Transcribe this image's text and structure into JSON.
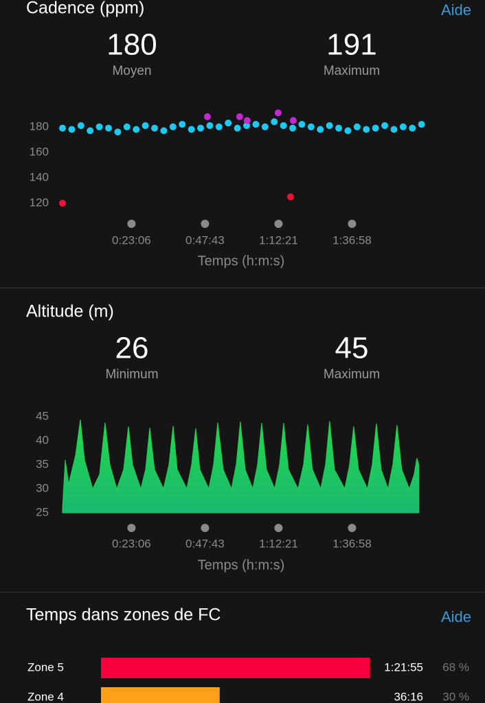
{
  "chart_data": [
    {
      "type": "scatter",
      "title": "Cadence (ppm)",
      "help": "Aide",
      "stats": [
        {
          "value": 180,
          "label": "Moyen"
        },
        {
          "value": 191,
          "label": "Maximum"
        }
      ],
      "xlabel": "Temps (h:m:s)",
      "xlim": [
        0,
        7220
      ],
      "xticks": [
        {
          "value": 1386,
          "label": "0:23:06"
        },
        {
          "value": 2863,
          "label": "0:47:43"
        },
        {
          "value": 4341,
          "label": "1:12:21"
        },
        {
          "value": 5818,
          "label": "1:36:58"
        }
      ],
      "ylim": [
        113,
        195
      ],
      "yticks": [
        120,
        140,
        160,
        180
      ],
      "series": [
        {
          "color": "#1ec8f0",
          "x": [
            0,
            185,
            370,
            555,
            740,
            925,
            1110,
            1295,
            1480,
            1665,
            1850,
            2035,
            2220,
            2405,
            2590,
            2775,
            2960,
            3145,
            3330,
            3515,
            3700,
            3885,
            4070,
            4255,
            4440,
            4625,
            4810,
            4995,
            5180,
            5365,
            5550,
            5735,
            5920,
            6105,
            6290,
            6475,
            6660,
            6845,
            7030,
            7215
          ],
          "values": [
            179,
            178,
            181,
            177,
            180,
            179,
            176,
            180,
            178,
            181,
            179,
            177,
            180,
            182,
            178,
            179,
            181,
            180,
            183,
            179,
            181,
            182,
            180,
            184,
            181,
            179,
            182,
            180,
            178,
            181,
            179,
            177,
            180,
            178,
            179,
            181,
            178,
            180,
            179,
            182
          ]
        },
        {
          "color": "#c02ad0",
          "x": [
            2912,
            3560,
            3712,
            4333,
            4637
          ],
          "values": [
            188,
            188,
            185,
            191,
            185
          ]
        },
        {
          "color": "#f0103a",
          "x": [
            0,
            4582
          ],
          "values": [
            120,
            125
          ]
        }
      ]
    },
    {
      "type": "area",
      "title": "Altitude (m)",
      "stats": [
        {
          "value": 26,
          "label": "Minimum"
        },
        {
          "value": 45,
          "label": "Maximum"
        }
      ],
      "xlabel": "Temps (h:m:s)",
      "xlim": [
        0,
        7220
      ],
      "xticks": [
        {
          "value": 1386,
          "label": "0:23:06"
        },
        {
          "value": 2863,
          "label": "0:47:43"
        },
        {
          "value": 4341,
          "label": "1:12:21"
        },
        {
          "value": 5818,
          "label": "1:36:58"
        }
      ],
      "ylim": [
        25,
        45
      ],
      "yticks": [
        25,
        30,
        35,
        40,
        45
      ],
      "x": [
        0,
        55,
        124,
        262,
        359,
        442,
        607,
        745,
        855,
        952,
        1090,
        1228,
        1325,
        1408,
        1573,
        1670,
        1753,
        1849,
        2029,
        2139,
        2222,
        2305,
        2498,
        2594,
        2677,
        2760,
        2939,
        3036,
        3119,
        3229,
        3395,
        3491,
        3574,
        3671,
        3823,
        3919,
        4002,
        4099,
        4264,
        4361,
        4444,
        4540,
        4733,
        4844,
        4927,
        5023,
        5189,
        5285,
        5368,
        5465,
        5672,
        5768,
        5851,
        5948,
        6127,
        6224,
        6307,
        6403,
        6541,
        6638,
        6721,
        6817,
        6969,
        7066,
        7121,
        7162
      ],
      "series": [
        {
          "color": "#1fcf52",
          "values": [
            26,
            36,
            31,
            37,
            44.4,
            36,
            30,
            33,
            43.8,
            35,
            30,
            34,
            43,
            35,
            30,
            34,
            42.7,
            34,
            30,
            35,
            43.1,
            34,
            30,
            35,
            42.6,
            34,
            30,
            35,
            43.8,
            34,
            30,
            35,
            44,
            34,
            30,
            35,
            43.7,
            34,
            30,
            35,
            43.7,
            34,
            30,
            35,
            43.4,
            34,
            30,
            35,
            44.1,
            34,
            30,
            35,
            43,
            34,
            30,
            35,
            43.6,
            34,
            30,
            35,
            43.3,
            34,
            30,
            33,
            36.4,
            35
          ]
        }
      ]
    },
    {
      "type": "bar",
      "title": "Temps dans zones de FC",
      "help": "Aide",
      "categories": [
        "Zone 5",
        "Zone 4"
      ],
      "values": [
        68,
        30
      ],
      "value_labels": [
        "68 %",
        "30 %"
      ],
      "durations": [
        "1:21:55",
        "36:16"
      ],
      "colors": [
        "#f5003c",
        "#ffa01c"
      ]
    }
  ]
}
